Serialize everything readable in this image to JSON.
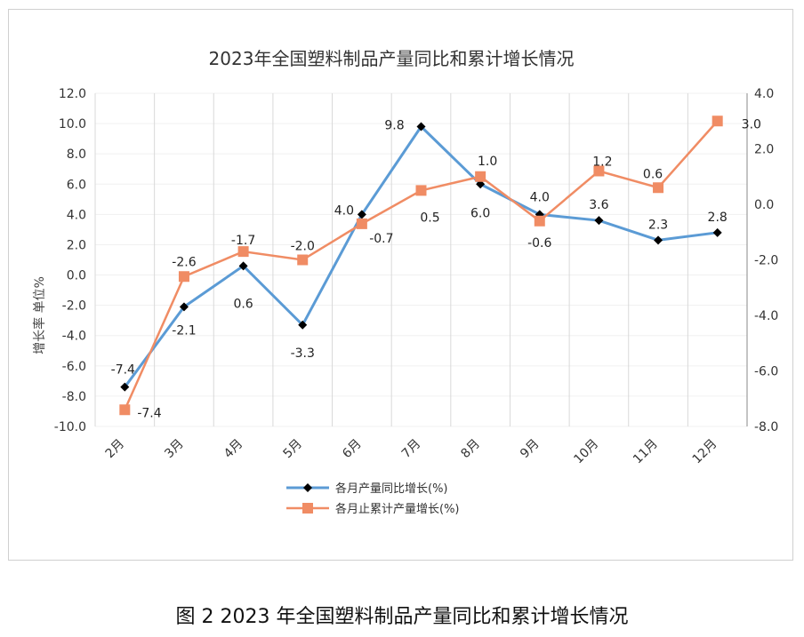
{
  "caption": "图 2 2023 年全国塑料制品产量同比和累计增长情况",
  "chart_data": {
    "type": "line",
    "title": "2023年全国塑料制品产量同比和累计增长情况",
    "ylabel": "增长率  单位%",
    "categories": [
      "2月",
      "3月",
      "4月",
      "5月",
      "6月",
      "7月",
      "8月",
      "9月",
      "10月",
      "11月",
      "12月"
    ],
    "ylim": [
      -10,
      12
    ],
    "y2lim": [
      -8,
      4
    ],
    "yticks": [
      "12.0",
      "10.0",
      "8.0",
      "6.0",
      "4.0",
      "2.0",
      "0.0",
      "-2.0",
      "-4.0",
      "-6.0",
      "-8.0",
      "-10.0"
    ],
    "y2ticks": [
      "4.0",
      "2.0",
      "0.0",
      "-2.0",
      "-4.0",
      "-6.0",
      "-8.0"
    ],
    "grid": true,
    "legend": "bottom",
    "series": [
      {
        "name": "各月产量同比增长(%)",
        "axis": "left",
        "color": "#5b9bd5",
        "marker": "diamond",
        "values": [
          -7.4,
          -2.1,
          0.6,
          -3.3,
          4.0,
          9.8,
          6.0,
          4.0,
          3.6,
          2.3,
          2.8
        ]
      },
      {
        "name": "各月止累计产量增长(%)",
        "axis": "right",
        "color": "#f08c64",
        "marker": "square",
        "values": [
          -7.4,
          -2.6,
          -1.7,
          -2.0,
          -0.7,
          0.5,
          1.0,
          -0.6,
          1.2,
          0.6,
          3.0
        ]
      }
    ]
  }
}
